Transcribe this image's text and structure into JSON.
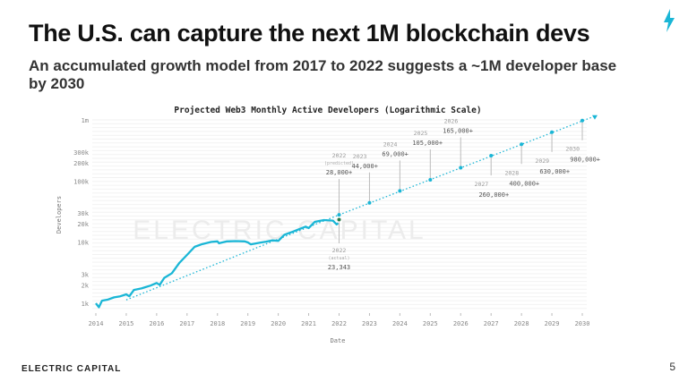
{
  "slide": {
    "title": "The U.S. can capture the next 1M blockchain devs",
    "subtitle": "An accumulated growth model from 2017 to 2022 suggests a ~1M developer base by 2030",
    "logo": "ELECTRIC CAPITAL",
    "page_number": "5",
    "accent": "#1ab6d6",
    "icons": [
      "lightning-bolt-icon"
    ]
  },
  "chart_data": {
    "type": "line",
    "title": "Projected Web3 Monthly Active Developers (Logarithmic Scale)",
    "xlabel": "Date",
    "ylabel": "Developers",
    "yscale": "log",
    "ylim": [
      1000,
      1000000
    ],
    "xlim": [
      2014,
      2030
    ],
    "watermark": "ELECTRIC CAPITAL",
    "yticks": [
      {
        "v": 1000,
        "label": "1k"
      },
      {
        "v": 2000,
        "label": "2k"
      },
      {
        "v": 3000,
        "label": "3k"
      },
      {
        "v": 10000,
        "label": "10k"
      },
      {
        "v": 20000,
        "label": "20k"
      },
      {
        "v": 30000,
        "label": "30k"
      },
      {
        "v": 100000,
        "label": "100k"
      },
      {
        "v": 200000,
        "label": "200k"
      },
      {
        "v": 300000,
        "label": "300k"
      },
      {
        "v": 1000000,
        "label": "1m"
      }
    ],
    "xticks": [
      "2014",
      "2015",
      "2016",
      "2017",
      "2018",
      "2019",
      "2020",
      "2021",
      "2022",
      "2023",
      "2024",
      "2025",
      "2026",
      "2027",
      "2028",
      "2029",
      "2030"
    ],
    "series": [
      {
        "kind": "actual",
        "color": "#1ab6d6",
        "x": [
          2014.0,
          2014.1,
          2014.2,
          2014.4,
          2014.6,
          2014.8,
          2015.0,
          2015.1,
          2015.25,
          2015.5,
          2015.8,
          2016.0,
          2016.1,
          2016.25,
          2016.5,
          2016.75,
          2017.0,
          2017.25,
          2017.5,
          2017.8,
          2018.0,
          2018.05,
          2018.3,
          2018.6,
          2018.9,
          2019.0,
          2019.1,
          2019.4,
          2019.6,
          2019.8,
          2020.0,
          2020.2,
          2020.5,
          2020.9,
          2021.0,
          2021.2,
          2021.5,
          2021.8,
          2021.92,
          2021.97
        ],
        "y": [
          1000,
          860,
          1100,
          1150,
          1250,
          1300,
          1400,
          1300,
          1650,
          1750,
          1950,
          2150,
          2000,
          2600,
          3100,
          4600,
          6200,
          8400,
          9300,
          10100,
          10300,
          9600,
          10300,
          10400,
          10300,
          9900,
          9200,
          9800,
          10200,
          10700,
          10500,
          13200,
          15000,
          18000,
          17000,
          21500,
          23000,
          22500,
          19500,
          20500
        ]
      },
      {
        "kind": "projection",
        "color": "#1ab6d6",
        "style": "dotted",
        "x": [
          2022,
          2023,
          2024,
          2025,
          2026,
          2027,
          2028,
          2029,
          2030
        ],
        "y": [
          28000,
          44000,
          69000,
          105000,
          165000,
          260000,
          400000,
          630000,
          980000
        ]
      }
    ],
    "projection_labels": [
      {
        "year": "2022",
        "note": "(predicted)",
        "value": "28,000+"
      },
      {
        "year": "2023",
        "value": "44,000+"
      },
      {
        "year": "2024",
        "value": "69,000+"
      },
      {
        "year": "2025",
        "value": "105,000+"
      },
      {
        "year": "2026",
        "value": "165,000+"
      },
      {
        "year": "2027",
        "value": "260,000+"
      },
      {
        "year": "2028",
        "value": "400,000+"
      },
      {
        "year": "2029",
        "value": "630,000+"
      },
      {
        "year": "2030",
        "value": "980,000+"
      }
    ],
    "actual_label": {
      "year": "2022",
      "note": "(actual)",
      "value": "23,343",
      "x": 2022,
      "y": 23343,
      "color": "#2a7a4a"
    }
  }
}
